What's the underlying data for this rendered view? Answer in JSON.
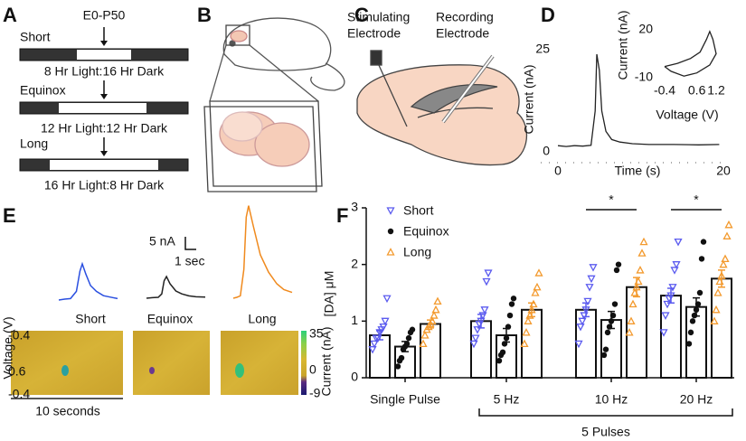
{
  "panels": {
    "A": {
      "label": "A",
      "timepoint": "E0-P50",
      "conditions": [
        {
          "name": "Short",
          "schedule": "8 Hr Light:16 Hr Dark"
        },
        {
          "name": "Equinox",
          "schedule": "12 Hr Light:12 Hr Dark"
        },
        {
          "name": "Long",
          "schedule": "16 Hr Light:8 Hr Dark"
        }
      ]
    },
    "B": {
      "label": "B"
    },
    "C": {
      "label": "C",
      "stimulating": [
        "Stimulating",
        "Electrode"
      ],
      "recording": [
        "Recording",
        "Electrode"
      ]
    },
    "D": {
      "label": "D"
    },
    "E": {
      "label": "E",
      "scale_current": "5 nA",
      "scale_time": "1 sec",
      "colorbar_label": "Current (nA)",
      "colorbar_ticks": [
        35,
        0,
        -9
      ],
      "voltage_label": "Voltage (V)",
      "voltage_ticks": [
        -0.4,
        0.6,
        -0.4
      ],
      "time_label": "10 seconds"
    },
    "F": {
      "label": "F"
    }
  },
  "chart_data": [
    {
      "type": "line",
      "ylabel": "Current (nA)",
      "xlabel": "Time (s)",
      "x": [
        0,
        1,
        2,
        3,
        4,
        4.5,
        4.7,
        5.0,
        5.3,
        5.8,
        6.5,
        7.5,
        9,
        11,
        14,
        17,
        19.5
      ],
      "values": [
        1.5,
        1.3,
        1.5,
        1.4,
        1.6,
        10,
        23.9,
        20,
        10,
        5,
        3,
        2.4,
        2,
        1.8,
        1.8,
        1.7,
        1.8
      ],
      "xlim": [
        0,
        20
      ],
      "xticks": [
        0,
        20
      ],
      "ylim": [
        0,
        25
      ],
      "yticks": [
        0,
        25
      ],
      "color": "#222222"
    },
    {
      "type": "line",
      "ylabel": "Current (nA)",
      "xlabel": "Voltage (V)",
      "x": [
        -0.4,
        0,
        0.4,
        0.7,
        0.9,
        1.0,
        1.1,
        1.2,
        1.0,
        0.6,
        0.2,
        -0.2,
        -0.4
      ],
      "values": [
        -3,
        -1,
        2,
        6,
        14,
        19,
        14,
        5,
        -2,
        -7,
        -9,
        -6,
        -3
      ],
      "xlim": [
        -0.4,
        1.2
      ],
      "xticks": [
        -0.4,
        0.6,
        1.2
      ],
      "ylim": [
        -10,
        20
      ],
      "yticks": [
        20,
        -10
      ],
      "color": "#222222"
    },
    {
      "type": "line",
      "series": [
        {
          "name": "Short",
          "color": "#2a4fe0",
          "x": [
            0,
            0.5,
            1,
            1.5,
            1.8,
            2,
            2.3,
            2.7,
            3.2,
            3.8,
            4.4,
            5
          ],
          "values": [
            0,
            0.3,
            0.5,
            3,
            10,
            12.5,
            9,
            5,
            3,
            1.5,
            1,
            0.5
          ]
        },
        {
          "name": "Equinox",
          "color": "#222222",
          "x": [
            0,
            0.5,
            1,
            1.3,
            1.5,
            1.7,
            2,
            2.5,
            3,
            3.6,
            4.2,
            5
          ],
          "values": [
            0,
            0.2,
            0.3,
            1.5,
            6,
            7.5,
            5,
            2.5,
            1.5,
            0.8,
            0.5,
            0.4
          ]
        },
        {
          "name": "Long",
          "color": "#f08a1e",
          "x": [
            0,
            0.3,
            0.6,
            0.9,
            1.1,
            1.3,
            1.7,
            2.3,
            3,
            3.7,
            4.3,
            5
          ],
          "values": [
            0,
            0.3,
            0.8,
            10,
            28,
            32,
            25,
            15,
            9,
            5,
            3,
            2
          ]
        }
      ]
    },
    {
      "type": "bar",
      "ylabel": "[DA] μM",
      "categories": [
        "Single Pulse",
        "5 Hz",
        "10 Hz",
        "20 Hz"
      ],
      "ylim": [
        0,
        3
      ],
      "yticks": [
        0,
        1,
        2,
        3
      ],
      "series": [
        {
          "name": "Short",
          "color": "#5b5bef",
          "marker": "triangle-down",
          "values": [
            0.75,
            1.0,
            1.2,
            1.45
          ],
          "errors": [
            0.08,
            0.12,
            0.12,
            0.13
          ],
          "points": [
            [
              0.5,
              0.6,
              0.7,
              0.7,
              0.8,
              0.85,
              0.9,
              1.0,
              1.4
            ],
            [
              0.6,
              0.7,
              0.85,
              0.95,
              1.0,
              1.1,
              1.2,
              1.7,
              1.85
            ],
            [
              0.6,
              0.9,
              1.0,
              1.1,
              1.2,
              1.35,
              1.6,
              1.75,
              1.95
            ],
            [
              0.8,
              1.1,
              1.3,
              1.4,
              1.45,
              1.6,
              1.9,
              2.0,
              2.4
            ]
          ]
        },
        {
          "name": "Equinox",
          "color": "#111111",
          "marker": "circle",
          "values": [
            0.55,
            0.75,
            1.02,
            1.25
          ],
          "errors": [
            0.09,
            0.12,
            0.15,
            0.16
          ],
          "points": [
            [
              0.2,
              0.3,
              0.35,
              0.5,
              0.55,
              0.6,
              0.7,
              0.8,
              0.85
            ],
            [
              0.3,
              0.4,
              0.45,
              0.6,
              0.7,
              0.9,
              1.1,
              1.3,
              1.4
            ],
            [
              0.4,
              0.5,
              0.8,
              0.9,
              1.0,
              1.1,
              1.3,
              1.9,
              2.0
            ],
            [
              0.6,
              0.8,
              1.0,
              1.1,
              1.2,
              1.3,
              1.5,
              2.1,
              2.4
            ]
          ]
        },
        {
          "name": "Long",
          "color": "#f39a2e",
          "marker": "triangle-up",
          "values": [
            0.95,
            1.2,
            1.6,
            1.75
          ],
          "errors": [
            0.07,
            0.12,
            0.17,
            0.15
          ],
          "points": [
            [
              0.6,
              0.75,
              0.85,
              0.9,
              0.95,
              1.0,
              1.1,
              1.2,
              1.35
            ],
            [
              0.6,
              0.8,
              1.0,
              1.1,
              1.2,
              1.3,
              1.5,
              1.6,
              1.85
            ],
            [
              0.8,
              1.0,
              1.3,
              1.5,
              1.6,
              1.7,
              1.9,
              2.2,
              2.4
            ],
            [
              1.0,
              1.2,
              1.5,
              1.7,
              1.8,
              2.0,
              2.1,
              2.5,
              2.7
            ]
          ]
        }
      ],
      "annotations": [
        {
          "text": "*",
          "category": 2
        },
        {
          "text": "*",
          "category": 3
        }
      ],
      "bracket": {
        "label": "5 Pulses",
        "from": 1,
        "to": 3
      }
    }
  ]
}
